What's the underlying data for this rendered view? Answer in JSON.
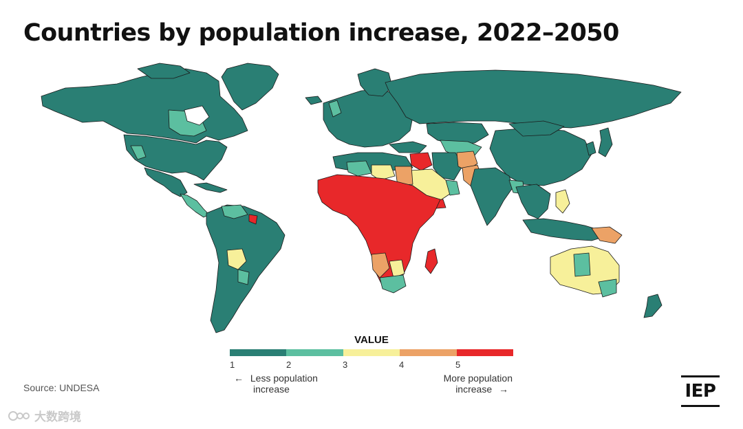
{
  "title": "Countries by population increase, 2022–2050",
  "legend": {
    "title": "VALUE",
    "ticks": [
      "1",
      "2",
      "3",
      "4",
      "5"
    ],
    "colors": [
      "#2a7f74",
      "#5cbfa0",
      "#f7f09a",
      "#eca266",
      "#e8282a"
    ],
    "less_label_line1": "Less population",
    "less_label_line2": "increase",
    "more_label_line1": "More population",
    "more_label_line2": "increase",
    "left_arrow": "←",
    "right_arrow": "→"
  },
  "map_colors": {
    "ocean": "#ffffff",
    "border": "#1a1a1a"
  },
  "source": "Source: UNDESA",
  "logo_text": "IEP",
  "watermark": "大数跨境"
}
